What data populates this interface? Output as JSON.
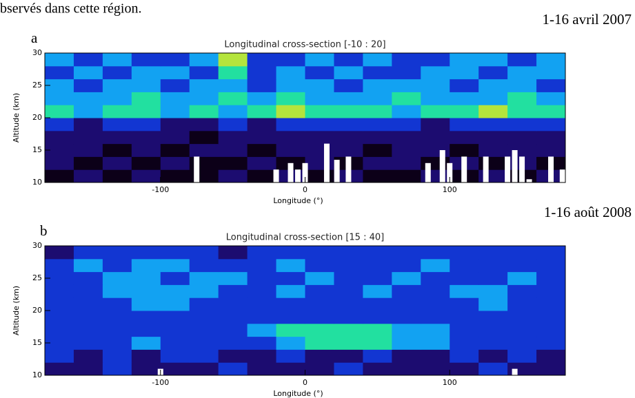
{
  "header": {
    "caption": "bservés dans cette région."
  },
  "chart_data": [
    {
      "type": "heatmap",
      "label": "a",
      "date": "1-16 avril 2007",
      "title": "Longitudinal cross-section [-10 : 20]",
      "xlabel": "Longitude (°)",
      "ylabel": "Altitude (km)",
      "xlim": [
        -180,
        180
      ],
      "ylim": [
        10,
        30
      ],
      "xticks": [
        -100,
        0,
        100
      ],
      "yticks": [
        10,
        15,
        20,
        25,
        30
      ],
      "colorscale": [
        "#0c0018",
        "#1c0c70",
        "#1236d2",
        "#12a2f2",
        "#22e0a0",
        "#b4e43c"
      ],
      "x": [
        -170,
        -150,
        -130,
        -110,
        -90,
        -70,
        -50,
        -30,
        -10,
        10,
        30,
        50,
        70,
        90,
        110,
        130,
        150,
        170
      ],
      "y": [
        11,
        13,
        15,
        17,
        19,
        21,
        23,
        25,
        27,
        29
      ],
      "z": [
        [
          0,
          1,
          0,
          1,
          0,
          0,
          1,
          0,
          1,
          0,
          1,
          0,
          0,
          1,
          0,
          1,
          0,
          1
        ],
        [
          1,
          0,
          1,
          0,
          1,
          0,
          0,
          1,
          0,
          1,
          0,
          1,
          1,
          0,
          1,
          0,
          1,
          0
        ],
        [
          1,
          1,
          0,
          1,
          0,
          1,
          1,
          0,
          1,
          1,
          1,
          0,
          1,
          1,
          0,
          1,
          1,
          1
        ],
        [
          1,
          1,
          1,
          1,
          1,
          0,
          1,
          1,
          1,
          1,
          1,
          1,
          1,
          1,
          1,
          1,
          1,
          1
        ],
        [
          2,
          1,
          2,
          2,
          1,
          1,
          2,
          1,
          2,
          2,
          2,
          2,
          2,
          1,
          2,
          2,
          2,
          2
        ],
        [
          4,
          3,
          4,
          4,
          3,
          4,
          3,
          4,
          5,
          4,
          4,
          4,
          3,
          4,
          4,
          5,
          4,
          4
        ],
        [
          3,
          3,
          3,
          4,
          3,
          3,
          4,
          3,
          4,
          3,
          3,
          3,
          4,
          3,
          3,
          3,
          4,
          3
        ],
        [
          3,
          2,
          3,
          3,
          2,
          3,
          3,
          2,
          3,
          3,
          2,
          3,
          3,
          3,
          2,
          3,
          3,
          2
        ],
        [
          2,
          3,
          2,
          3,
          3,
          2,
          4,
          2,
          3,
          2,
          3,
          2,
          2,
          3,
          3,
          2,
          3,
          3
        ],
        [
          3,
          2,
          3,
          2,
          2,
          3,
          5,
          2,
          2,
          3,
          2,
          3,
          2,
          2,
          3,
          3,
          2,
          3
        ]
      ],
      "cloud_tops": {
        "color": "#ffffff",
        "x": [
          -75,
          -20,
          -10,
          -5,
          0,
          15,
          22,
          30,
          85,
          95,
          100,
          110,
          125,
          140,
          145,
          150,
          155,
          170,
          178
        ],
        "values": [
          14,
          12,
          13,
          12,
          13,
          16,
          13.5,
          14,
          13,
          15,
          13,
          14,
          14,
          14,
          15,
          14,
          10.5,
          14,
          12
        ]
      }
    },
    {
      "type": "heatmap",
      "label": "b",
      "date": "1-16 août 2008",
      "title": "Longitudinal cross-section [15 : 40]",
      "xlabel": "Longitude (°)",
      "ylabel": "Altitude (km)",
      "xlim": [
        -180,
        180
      ],
      "ylim": [
        10,
        30
      ],
      "xticks": [
        -100,
        0,
        100
      ],
      "yticks": [
        10,
        15,
        20,
        25,
        30
      ],
      "colorscale": [
        "#0c0018",
        "#1c0c70",
        "#1236d2",
        "#12a2f2",
        "#22e0a0",
        "#b4e43c"
      ],
      "x": [
        -170,
        -150,
        -130,
        -110,
        -90,
        -70,
        -50,
        -30,
        -10,
        10,
        30,
        50,
        70,
        90,
        110,
        130,
        150,
        170
      ],
      "y": [
        11,
        13,
        15,
        17,
        19,
        21,
        23,
        25,
        27,
        29
      ],
      "z": [
        [
          1,
          1,
          2,
          1,
          1,
          1,
          2,
          1,
          1,
          1,
          2,
          1,
          1,
          1,
          1,
          2,
          1,
          1
        ],
        [
          2,
          1,
          2,
          1,
          2,
          2,
          1,
          1,
          2,
          1,
          1,
          2,
          1,
          1,
          2,
          1,
          2,
          1
        ],
        [
          2,
          2,
          2,
          3,
          2,
          2,
          2,
          2,
          3,
          4,
          4,
          4,
          3,
          3,
          2,
          2,
          2,
          2
        ],
        [
          2,
          2,
          2,
          2,
          2,
          2,
          2,
          3,
          4,
          4,
          4,
          4,
          3,
          3,
          2,
          2,
          2,
          2
        ],
        [
          2,
          2,
          2,
          2,
          2,
          2,
          2,
          2,
          2,
          2,
          2,
          2,
          2,
          2,
          2,
          2,
          2,
          2
        ],
        [
          2,
          2,
          2,
          3,
          3,
          2,
          2,
          2,
          2,
          2,
          2,
          2,
          2,
          2,
          2,
          3,
          2,
          2
        ],
        [
          2,
          2,
          3,
          3,
          3,
          3,
          2,
          2,
          3,
          2,
          2,
          3,
          2,
          2,
          3,
          3,
          2,
          2
        ],
        [
          2,
          2,
          3,
          3,
          2,
          3,
          3,
          2,
          2,
          3,
          2,
          2,
          3,
          2,
          2,
          2,
          3,
          2
        ],
        [
          2,
          3,
          2,
          3,
          3,
          2,
          2,
          2,
          3,
          2,
          2,
          2,
          2,
          3,
          2,
          2,
          2,
          2
        ],
        [
          1,
          2,
          2,
          2,
          2,
          2,
          1,
          2,
          2,
          2,
          2,
          2,
          2,
          2,
          2,
          2,
          2,
          2
        ]
      ],
      "cloud_tops": {
        "color": "#ffffff",
        "x": [
          -100,
          145
        ],
        "values": [
          11,
          11
        ]
      }
    }
  ]
}
